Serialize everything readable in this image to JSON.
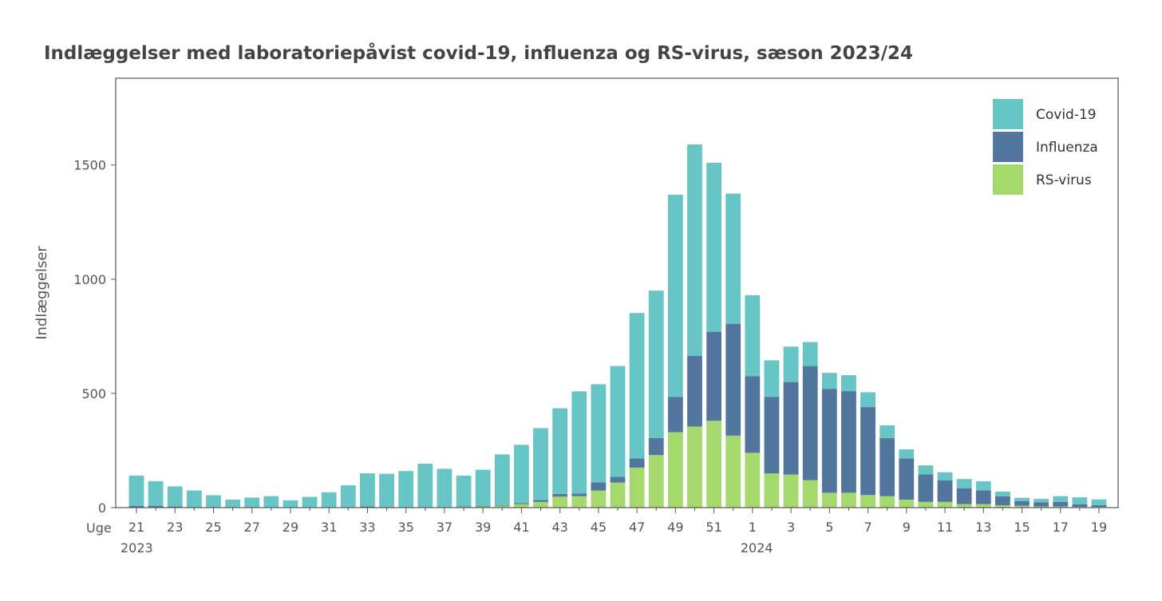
{
  "chart_data": {
    "type": "bar",
    "stacked": true,
    "title": "Indlæggelser med laboratoriepåvist covid-19, influenza og RS-virus, sæson 2023/24",
    "ylabel": "Indlæggelser",
    "xlabel_prefix": "Uge",
    "ylim": [
      0,
      1880
    ],
    "yticks": [
      0,
      500,
      1000,
      1500
    ],
    "weeks": [
      21,
      22,
      23,
      24,
      25,
      26,
      27,
      28,
      29,
      30,
      31,
      32,
      33,
      34,
      35,
      36,
      37,
      38,
      39,
      40,
      41,
      42,
      43,
      44,
      45,
      46,
      47,
      48,
      49,
      50,
      51,
      52,
      1,
      2,
      3,
      4,
      5,
      6,
      7,
      8,
      9,
      10,
      11,
      12,
      13,
      14,
      15,
      16,
      17,
      18,
      19
    ],
    "tick_labels": [
      "21",
      "23",
      "25",
      "27",
      "29",
      "31",
      "33",
      "35",
      "37",
      "39",
      "41",
      "43",
      "45",
      "47",
      "49",
      "51",
      "1",
      "3",
      "5",
      "7",
      "9",
      "11",
      "13",
      "15",
      "17",
      "19"
    ],
    "year_labels": [
      {
        "week": 21,
        "label": "2023"
      },
      {
        "week": 1,
        "label": "2024"
      }
    ],
    "series": [
      {
        "name": "RS-virus",
        "color": "#a5d86d",
        "values": [
          0,
          0,
          0,
          0,
          0,
          0,
          0,
          0,
          0,
          0,
          0,
          0,
          0,
          0,
          0,
          0,
          0,
          3,
          5,
          8,
          15,
          25,
          48,
          50,
          75,
          110,
          175,
          230,
          330,
          355,
          380,
          315,
          240,
          150,
          145,
          120,
          65,
          65,
          55,
          50,
          35,
          25,
          25,
          15,
          15,
          10,
          8,
          5,
          5,
          3,
          3
        ]
      },
      {
        "name": "Influenza",
        "color": "#53769e",
        "values": [
          8,
          8,
          5,
          3,
          2,
          2,
          2,
          2,
          2,
          2,
          2,
          3,
          5,
          3,
          2,
          2,
          2,
          2,
          3,
          3,
          5,
          8,
          12,
          12,
          35,
          25,
          40,
          75,
          155,
          310,
          390,
          490,
          335,
          335,
          405,
          500,
          455,
          445,
          385,
          255,
          180,
          120,
          95,
          70,
          60,
          40,
          20,
          18,
          20,
          12,
          8
        ]
      },
      {
        "name": "Covid-19",
        "color": "#68c5c5",
        "values": [
          132,
          108,
          88,
          72,
          52,
          33,
          42,
          48,
          30,
          45,
          65,
          95,
          145,
          145,
          158,
          190,
          168,
          135,
          158,
          222,
          255,
          315,
          375,
          447,
          430,
          485,
          637,
          645,
          885,
          925,
          740,
          570,
          355,
          160,
          155,
          105,
          70,
          70,
          65,
          55,
          40,
          40,
          35,
          40,
          40,
          20,
          15,
          15,
          25,
          30,
          25
        ]
      }
    ],
    "legend": [
      {
        "label": "Covid-19",
        "color": "#68c5c5"
      },
      {
        "label": "Influenza",
        "color": "#53769e"
      },
      {
        "label": "RS-virus",
        "color": "#a5d86d"
      }
    ]
  }
}
